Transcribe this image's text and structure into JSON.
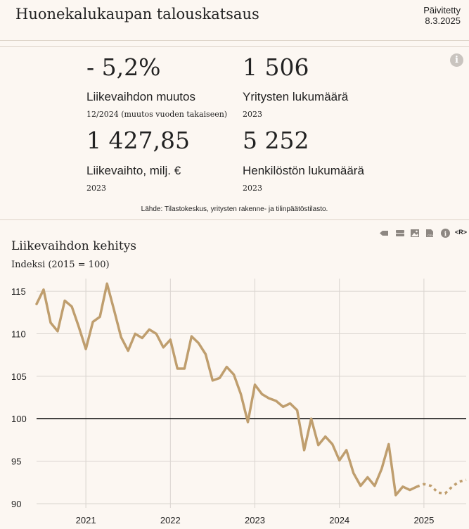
{
  "header": {
    "title": "Huonekalukaupan talouskatsaus",
    "updated_label": "Päivitetty",
    "updated_date": "8.3.2025"
  },
  "kpis": [
    {
      "value": "- 5,2%",
      "label": "Liikevaihdon muutos",
      "note": "12/2024 (muutos vuoden takaiseen)"
    },
    {
      "value": "1 506",
      "label": "Yritysten lukumäärä",
      "note": "2023"
    },
    {
      "value": "1 427,85",
      "label": "Liikevaihto, milj. €",
      "note": "2023"
    },
    {
      "value": "5 252",
      "label": "Henkilöstön lukumäärä",
      "note": "2023"
    }
  ],
  "source": "Lähde: Tilastokeskus, yritysten rakenne- ja tilinpäätöstilasto.",
  "toolbar": {
    "icons": [
      "arrow-left-icon",
      "table-icon",
      "image-icon",
      "csv-file-icon",
      "info-icon",
      "r-code-icon"
    ],
    "r_label": "<R>"
  },
  "colors": {
    "series": "#bf9e6e",
    "baseline": "#111111",
    "grid": "#d9d4cf",
    "background": "#fcf7f2"
  },
  "chart_data": {
    "type": "line",
    "title": "Liikevaihdon kehitys",
    "subtitle": "Indeksi (2015 = 100)",
    "xlabel": "",
    "ylabel": "",
    "ylim": [
      89.5,
      116.5
    ],
    "xlim": [
      "2020-06",
      "2025-07"
    ],
    "yticks": [
      90,
      95,
      100,
      105,
      110,
      115
    ],
    "xticks": [
      "2021",
      "2022",
      "2023",
      "2024",
      "2025"
    ],
    "reference_line": 100,
    "grid": true,
    "series": [
      {
        "style": "solid",
        "x": [
          "2020-06",
          "2020-07",
          "2020-08",
          "2020-09",
          "2020-10",
          "2020-11",
          "2020-12",
          "2021-01",
          "2021-02",
          "2021-03",
          "2021-04",
          "2021-05",
          "2021-06",
          "2021-07",
          "2021-08",
          "2021-09",
          "2021-10",
          "2021-11",
          "2021-12",
          "2022-01",
          "2022-02",
          "2022-03",
          "2022-04",
          "2022-05",
          "2022-06",
          "2022-07",
          "2022-08",
          "2022-09",
          "2022-10",
          "2022-11",
          "2022-12",
          "2023-01",
          "2023-02",
          "2023-03",
          "2023-04",
          "2023-05",
          "2023-06",
          "2023-07",
          "2023-08",
          "2023-09",
          "2023-10",
          "2023-11",
          "2023-12",
          "2024-01",
          "2024-02",
          "2024-03",
          "2024-04",
          "2024-05",
          "2024-06",
          "2024-07",
          "2024-08",
          "2024-09",
          "2024-10",
          "2024-11",
          "2024-12"
        ],
        "values": [
          113.5,
          115.2,
          111.3,
          110.3,
          113.9,
          113.2,
          110.8,
          108.2,
          111.4,
          112.0,
          115.9,
          112.8,
          109.6,
          108.0,
          110.0,
          109.5,
          110.5,
          110.0,
          108.4,
          109.3,
          105.9,
          105.9,
          109.7,
          108.9,
          107.6,
          104.5,
          104.8,
          106.1,
          105.2,
          102.9,
          99.6,
          104.0,
          102.9,
          102.4,
          102.1,
          101.4,
          101.8,
          101.0,
          96.3,
          100.0,
          96.9,
          97.9,
          97.0,
          95.1,
          96.3,
          93.6,
          92.1,
          93.1,
          92.1,
          94.1,
          97.0,
          91.0,
          92.0,
          91.6,
          92.0
        ]
      },
      {
        "style": "dotted",
        "x": [
          "2024-12",
          "2025-01",
          "2025-02",
          "2025-03",
          "2025-04",
          "2025-05",
          "2025-06",
          "2025-07"
        ],
        "values": [
          92.0,
          92.3,
          92.1,
          91.3,
          91.2,
          92.0,
          92.6,
          92.8
        ]
      }
    ]
  }
}
